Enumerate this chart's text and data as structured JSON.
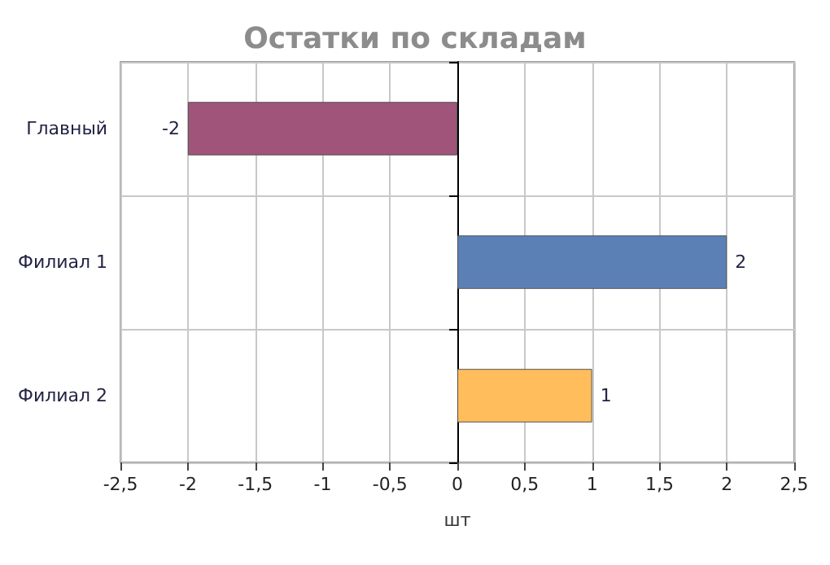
{
  "chart_data": {
    "type": "bar",
    "orientation": "horizontal",
    "title": "Остатки по складам",
    "xlabel": "шт",
    "categories": [
      "Главный",
      "Филиал 1",
      "Филиал 2"
    ],
    "values": [
      -2,
      2,
      1
    ],
    "colors": [
      "#a0547a",
      "#5b80b6",
      "#ffbd5c"
    ],
    "xlim": [
      -2.5,
      2.5
    ],
    "xticks": [
      {
        "value": -2.5,
        "label": "-2,5"
      },
      -2,
      {
        "value": -1.5,
        "label": "-1,5"
      },
      -1,
      {
        "value": -0.5,
        "label": "-0,5"
      },
      0,
      {
        "value": 0.5,
        "label": "0,5"
      },
      1,
      {
        "value": 1.5,
        "label": "1,5"
      },
      2,
      {
        "value": 2.5,
        "label": "2,5"
      }
    ],
    "grid": true,
    "data_labels": true
  }
}
